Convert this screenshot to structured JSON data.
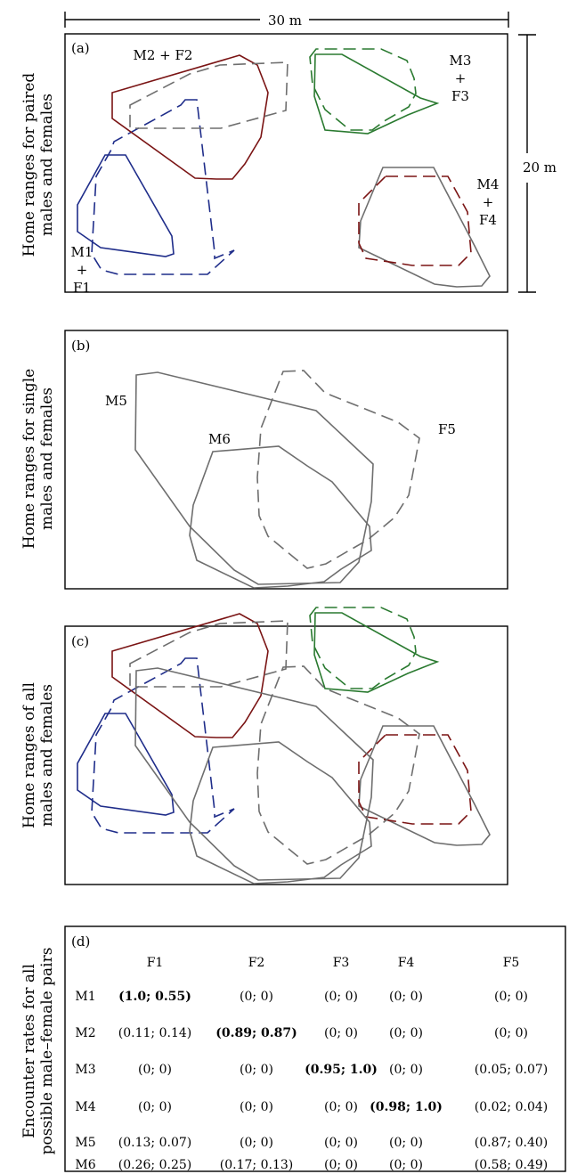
{
  "scale": {
    "width_label": "30 m",
    "height_label": "20 m"
  },
  "colors": {
    "m1": "#1f2d8a",
    "m2": "#7a1414",
    "m3": "#2a7a30",
    "gray": "#6e6e6e"
  },
  "panel_a": {
    "tag": "(a)",
    "side_line1": "Home ranges for paired",
    "side_line2": "males and females",
    "labels": {
      "m2f2": "M2 + F2",
      "m3": "M3",
      "plus3": "+",
      "f3": "F3",
      "m4": "M4",
      "plus4": "+",
      "f4": "F4",
      "m1": "M1",
      "plus1": "+",
      "f1": "F1"
    }
  },
  "panel_b": {
    "tag": "(b)",
    "side_line1": "Home ranges for single",
    "side_line2": "males and females",
    "labels": {
      "m5": "M5",
      "m6": "M6",
      "f5": "F5"
    }
  },
  "panel_c": {
    "tag": "(c)",
    "side_line1": "Home ranges of all",
    "side_line2": "males and females"
  },
  "panel_d": {
    "tag": "(d)",
    "side_line1": "Encounter rates for all",
    "side_line2": "possible male–female pairs",
    "columns": [
      "F1",
      "F2",
      "F3",
      "F4",
      "F5"
    ],
    "rows": [
      {
        "label": "M1",
        "cells": [
          "(1.0; 0.55)",
          "(0; 0)",
          "(0; 0)",
          "(0; 0)",
          "(0; 0)"
        ],
        "bold_index": 0
      },
      {
        "label": "M2",
        "cells": [
          "(0.11; 0.14)",
          "(0.89; 0.87)",
          "(0; 0)",
          "(0; 0)",
          "(0; 0)"
        ],
        "bold_index": 1
      },
      {
        "label": "M3",
        "cells": [
          "(0; 0)",
          "(0; 0)",
          "(0.95; 1.0)",
          "(0; 0)",
          "(0.05; 0.07)"
        ],
        "bold_index": 2
      },
      {
        "label": "M4",
        "cells": [
          "(0; 0)",
          "(0; 0)",
          "(0; 0)",
          "(0.98; 1.0)",
          "(0.02; 0.04)"
        ],
        "bold_index": 3
      },
      {
        "label": "M5",
        "cells": [
          "(0.13; 0.07)",
          "(0; 0)",
          "(0; 0)",
          "(0; 0)",
          "(0.87; 0.40)"
        ],
        "bold_index": -1
      },
      {
        "label": "M6",
        "cells": [
          "(0.26; 0.25)",
          "(0.17; 0.13)",
          "(0; 0)",
          "(0; 0)",
          "(0.58; 0.49)"
        ],
        "bold_index": -1
      }
    ]
  }
}
